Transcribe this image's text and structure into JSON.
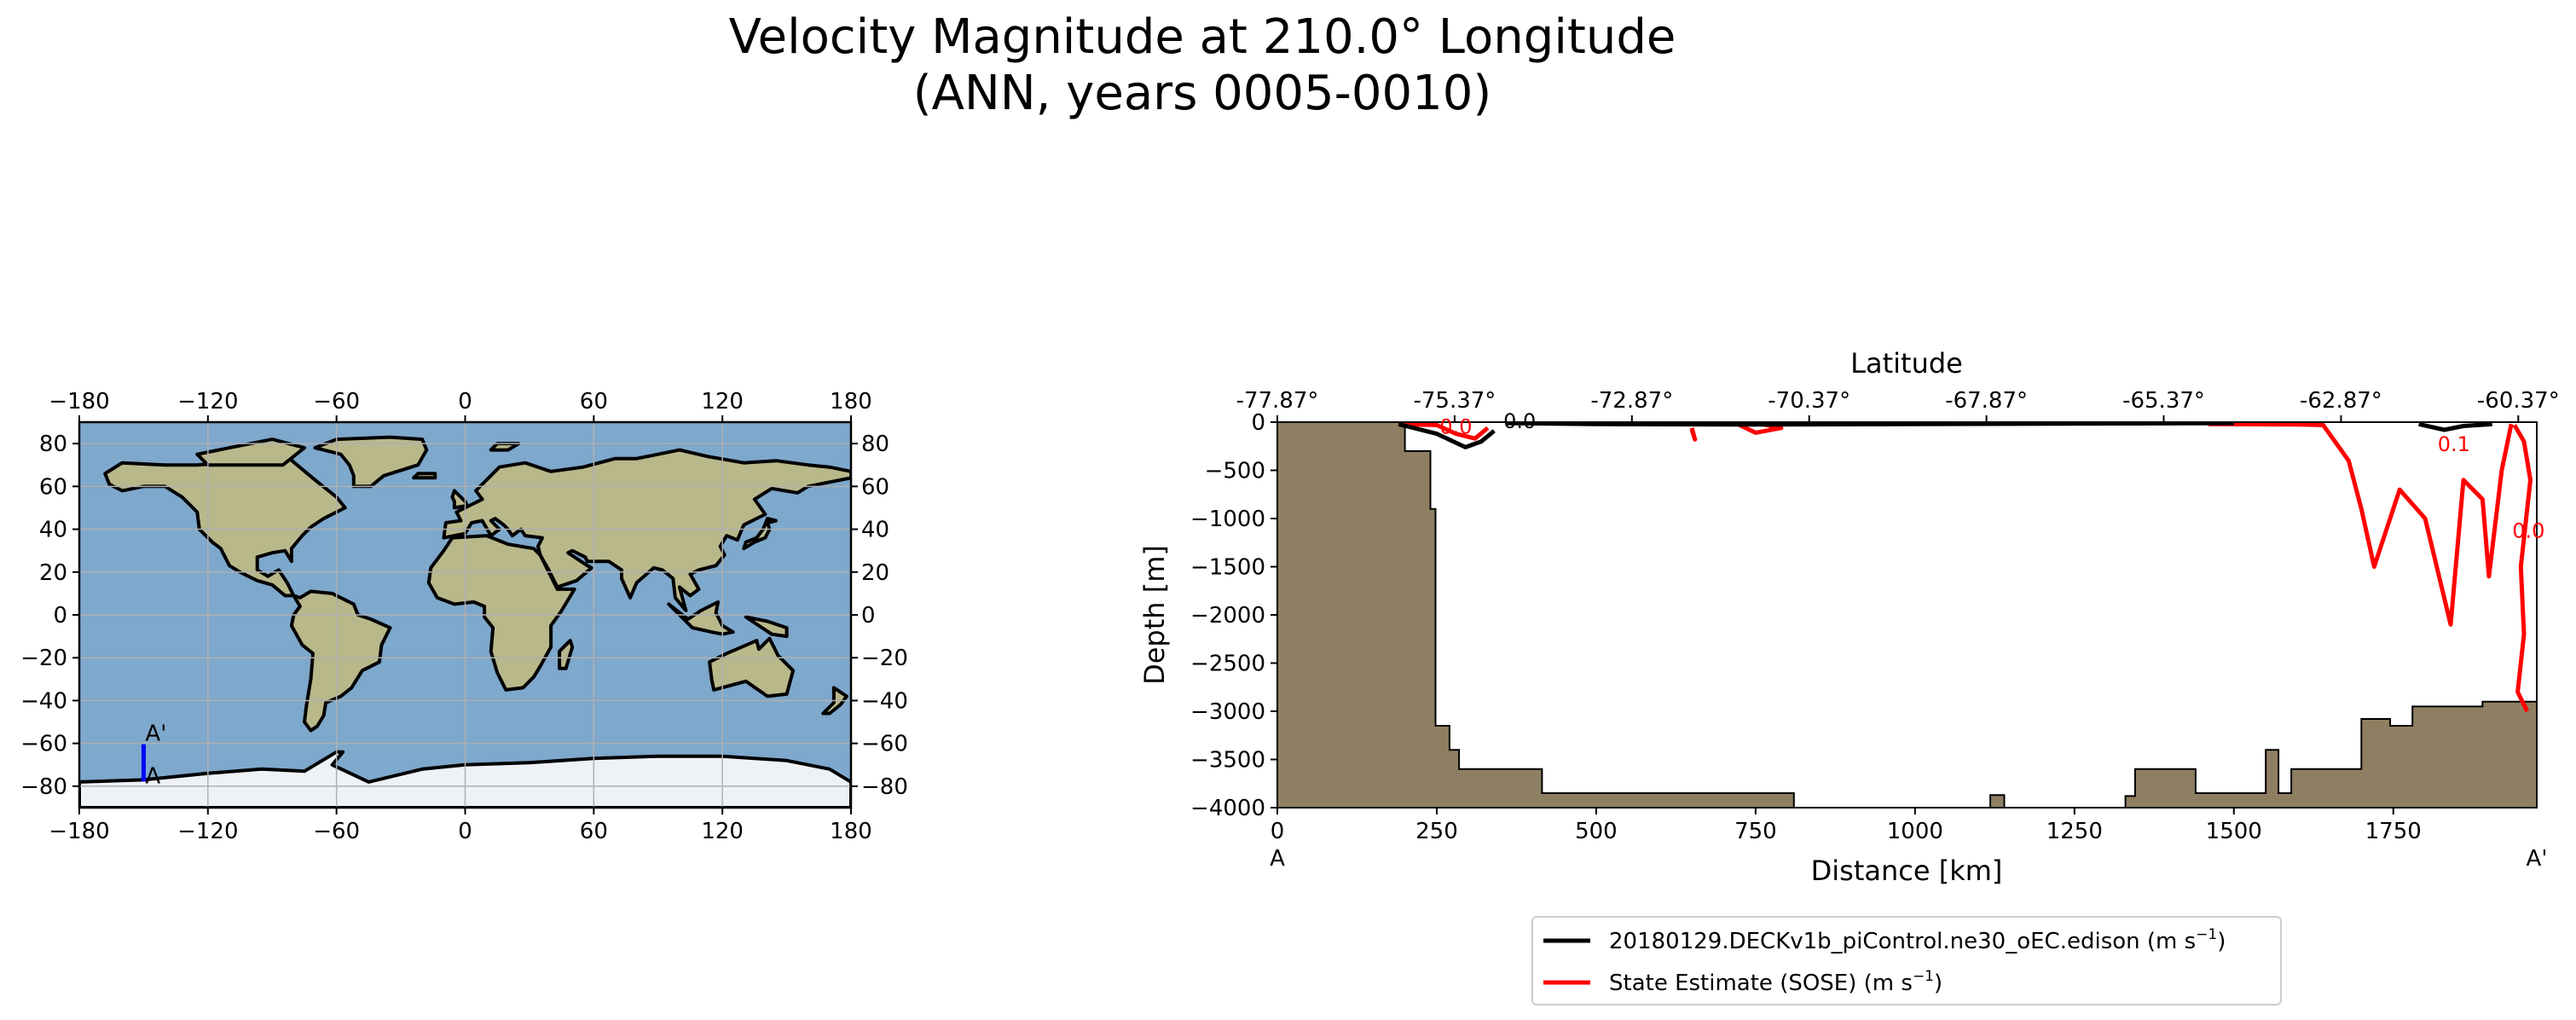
{
  "title": {
    "line1": "Velocity Magnitude at 210.0° Longitude",
    "line2": "(ANN, years 0005-0010)"
  },
  "colors": {
    "ocean": "#7ea8cc",
    "land": "#b9b88a",
    "ice": "#eef2f7",
    "grid": "#b0b0b0",
    "coast": "#000000",
    "transect": "#0000ff",
    "bathymetry": "#8f7f62",
    "model": "#000000",
    "obs": "#ff0000"
  },
  "chart_data": [
    {
      "type": "map",
      "name": "transect-location-map",
      "projection": "PlateCarree",
      "xlim": [
        -180,
        180
      ],
      "ylim": [
        -90,
        90
      ],
      "xticks": [
        -180,
        -120,
        -60,
        0,
        60,
        120,
        180
      ],
      "xtick_labels": [
        "−180",
        "−120",
        "−60",
        "0",
        "60",
        "120",
        "180"
      ],
      "yticks": [
        80,
        60,
        40,
        20,
        0,
        -20,
        -40,
        -60,
        -80
      ],
      "ytick_labels": [
        "80",
        "60",
        "40",
        "20",
        "0",
        "−20",
        "−40",
        "−60",
        "−80"
      ],
      "grid": true,
      "transect": {
        "lon": -150,
        "lat_start": -77.87,
        "lat_end": -60.37,
        "start_label": "A",
        "end_label": "A'"
      }
    },
    {
      "type": "contour",
      "name": "velocity-transect",
      "xlabel": "Distance [km]",
      "ylabel": "Depth [m]",
      "top_axis_label": "Latitude",
      "xlim": [
        0,
        1975
      ],
      "ylim": [
        -4000,
        0
      ],
      "xticks": [
        0,
        250,
        500,
        750,
        1000,
        1250,
        1500,
        1750
      ],
      "xtick_labels": [
        "0",
        "250",
        "500",
        "750",
        "1000",
        "1250",
        "1500",
        "1750"
      ],
      "yticks": [
        0,
        -500,
        -1000,
        -1500,
        -2000,
        -2500,
        -3000,
        -3500,
        -4000
      ],
      "ytick_labels": [
        "0",
        "−500",
        "−1000",
        "−1500",
        "−2000",
        "−2500",
        "−3000",
        "−3500",
        "−4000"
      ],
      "lat_ticks": [
        0,
        278,
        556,
        834,
        1112,
        1390,
        1668,
        1946
      ],
      "lat_tick_labels": [
        "-77.87°",
        "-75.37°",
        "-72.87°",
        "-70.37°",
        "-67.87°",
        "-65.37°",
        "-62.87°",
        "-60.37°"
      ],
      "start_label": "A",
      "end_label": "A'",
      "bathymetry": [
        [
          0,
          0
        ],
        [
          200,
          0
        ],
        [
          200,
          -300
        ],
        [
          240,
          -300
        ],
        [
          240,
          -900
        ],
        [
          248,
          -900
        ],
        [
          248,
          -3150
        ],
        [
          270,
          -3150
        ],
        [
          270,
          -3400
        ],
        [
          285,
          -3400
        ],
        [
          285,
          -3600
        ],
        [
          415,
          -3600
        ],
        [
          415,
          -3850
        ],
        [
          810,
          -3850
        ],
        [
          810,
          -4000
        ],
        [
          1118,
          -4000
        ],
        [
          1118,
          -3870
        ],
        [
          1140,
          -3870
        ],
        [
          1140,
          -4000
        ],
        [
          1330,
          -4000
        ],
        [
          1330,
          -3880
        ],
        [
          1345,
          -3880
        ],
        [
          1345,
          -3600
        ],
        [
          1440,
          -3600
        ],
        [
          1440,
          -3850
        ],
        [
          1550,
          -3850
        ],
        [
          1550,
          -3400
        ],
        [
          1570,
          -3400
        ],
        [
          1570,
          -3850
        ],
        [
          1590,
          -3850
        ],
        [
          1590,
          -3600
        ],
        [
          1700,
          -3600
        ],
        [
          1700,
          -3080
        ],
        [
          1745,
          -3080
        ],
        [
          1745,
          -3150
        ],
        [
          1780,
          -3150
        ],
        [
          1780,
          -2950
        ],
        [
          1890,
          -2950
        ],
        [
          1890,
          -2900
        ],
        [
          1975,
          -2900
        ],
        [
          1975,
          -4000
        ],
        [
          0,
          -4000
        ]
      ],
      "model_contours": [
        {
          "points": [
            [
              190,
              -20
            ],
            [
              250,
              -120
            ],
            [
              295,
              -260
            ],
            [
              320,
              -200
            ],
            [
              340,
              -90
            ]
          ]
        },
        {
          "points": [
            [
              360,
              -10
            ],
            [
              500,
              -20
            ],
            [
              760,
              -25
            ],
            [
              1500,
              -10
            ]
          ]
        },
        {
          "points": [
            [
              1790,
              -20
            ],
            [
              1830,
              -80
            ],
            [
              1860,
              -40
            ],
            [
              1905,
              -20
            ]
          ]
        }
      ],
      "obs_contours": [
        {
          "points": [
            [
              190,
              -20
            ],
            [
              250,
              -30
            ],
            [
              280,
              -120
            ],
            [
              310,
              -170
            ],
            [
              330,
              -60
            ]
          ]
        },
        {
          "points": [
            [
              650,
              -80
            ],
            [
              655,
              -180
            ],
            [
              650,
              -60
            ]
          ]
        },
        {
          "points": [
            [
              720,
              -15
            ],
            [
              750,
              -110
            ],
            [
              790,
              -60
            ],
            [
              760,
              -20
            ]
          ]
        },
        {
          "points": [
            [
              1460,
              -20
            ],
            [
              1600,
              -25
            ],
            [
              1640,
              -30
            ],
            [
              1680,
              -400
            ],
            [
              1700,
              -900
            ],
            [
              1720,
              -1500
            ],
            [
              1760,
              -700
            ],
            [
              1800,
              -1000
            ],
            [
              1840,
              -2100
            ],
            [
              1860,
              -600
            ],
            [
              1890,
              -800
            ],
            [
              1900,
              -1600
            ],
            [
              1920,
              -500
            ],
            [
              1935,
              -20
            ]
          ]
        },
        {
          "points": [
            [
              1940,
              -30
            ],
            [
              1955,
              -200
            ],
            [
              1965,
              -600
            ],
            [
              1950,
              -1500
            ],
            [
              1955,
              -2200
            ],
            [
              1945,
              -2800
            ],
            [
              1960,
              -3000
            ]
          ]
        }
      ],
      "contour_labels": [
        {
          "text": "0.0",
          "x": 380,
          "y": -60,
          "series": "model"
        },
        {
          "text": "0.0",
          "x": 280,
          "y": -120,
          "series": "obs"
        },
        {
          "text": "0.1",
          "x": 1845,
          "y": -300,
          "series": "obs"
        },
        {
          "text": "0.0",
          "x": 1962,
          "y": -1200,
          "series": "obs"
        }
      ],
      "legend": {
        "placement": "below",
        "entries": [
          {
            "series": "model",
            "label": "20180129.DECKv1b_piControl.ne30_oEC.edison (m s",
            "unit_sup": "−1",
            "close": ")"
          },
          {
            "series": "obs",
            "label": "State Estimate (SOSE) (m s",
            "unit_sup": "−1",
            "close": ")"
          }
        ]
      }
    }
  ]
}
